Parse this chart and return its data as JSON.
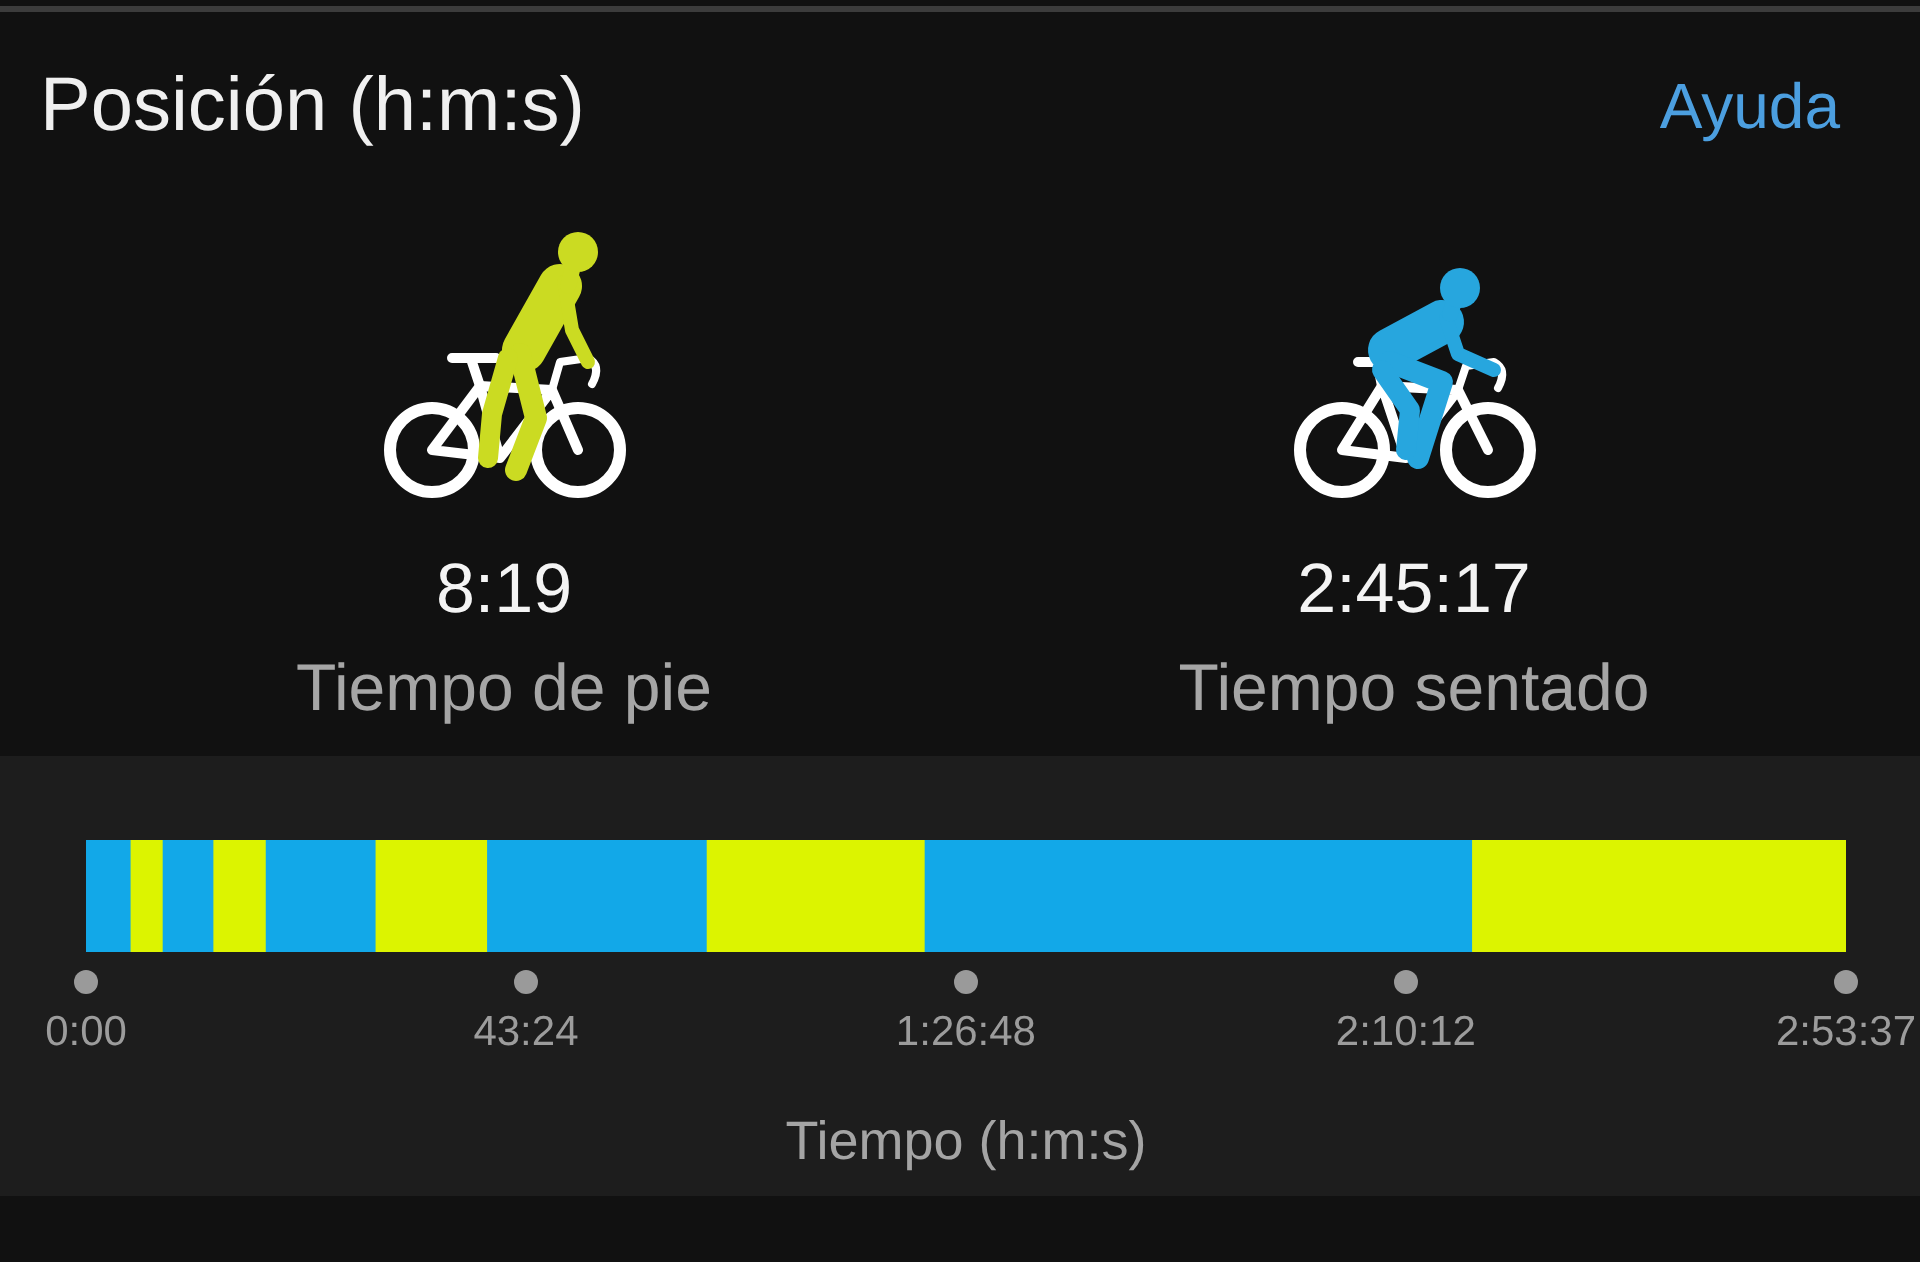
{
  "chart_data": {
    "type": "bar",
    "title": "Posición (h:m:s)",
    "xlabel": "Tiempo (h:m:s)",
    "annotations": [
      "Ayuda",
      "8:19",
      "Tiempo de pie",
      "2:45:17",
      "Tiempo sentado"
    ],
    "orientation": "horizontal",
    "stacked": true,
    "categories": [
      null
    ],
    "series": [
      {
        "color": "#12a8e8",
        "values": [
          260
        ]
      },
      {
        "color": "#dcf400",
        "values": [
          190
        ]
      },
      {
        "color": "#12a8e8",
        "values": [
          300
        ]
      },
      {
        "color": "#dcf400",
        "values": [
          310
        ]
      },
      {
        "color": "#12a8e8",
        "values": [
          650
        ]
      },
      {
        "color": "#dcf400",
        "values": [
          660
        ]
      },
      {
        "color": "#12a8e8",
        "values": [
          1300
        ]
      },
      {
        "color": "#dcf400",
        "values": [
          1290
        ]
      },
      {
        "color": "#12a8e8",
        "values": [
          3240
        ]
      },
      {
        "color": "#dcf400",
        "values": [
          2217
        ]
      }
    ],
    "xlim": [
      0,
      10417
    ],
    "xticks": [
      {
        "value": 0,
        "label": "0:00"
      },
      {
        "value": 2604,
        "label": "43:24"
      },
      {
        "value": 5208,
        "label": "1:26:48"
      },
      {
        "value": 7812,
        "label": "2:10:12"
      },
      {
        "value": 10417,
        "label": "2:53:37"
      }
    ]
  }
}
